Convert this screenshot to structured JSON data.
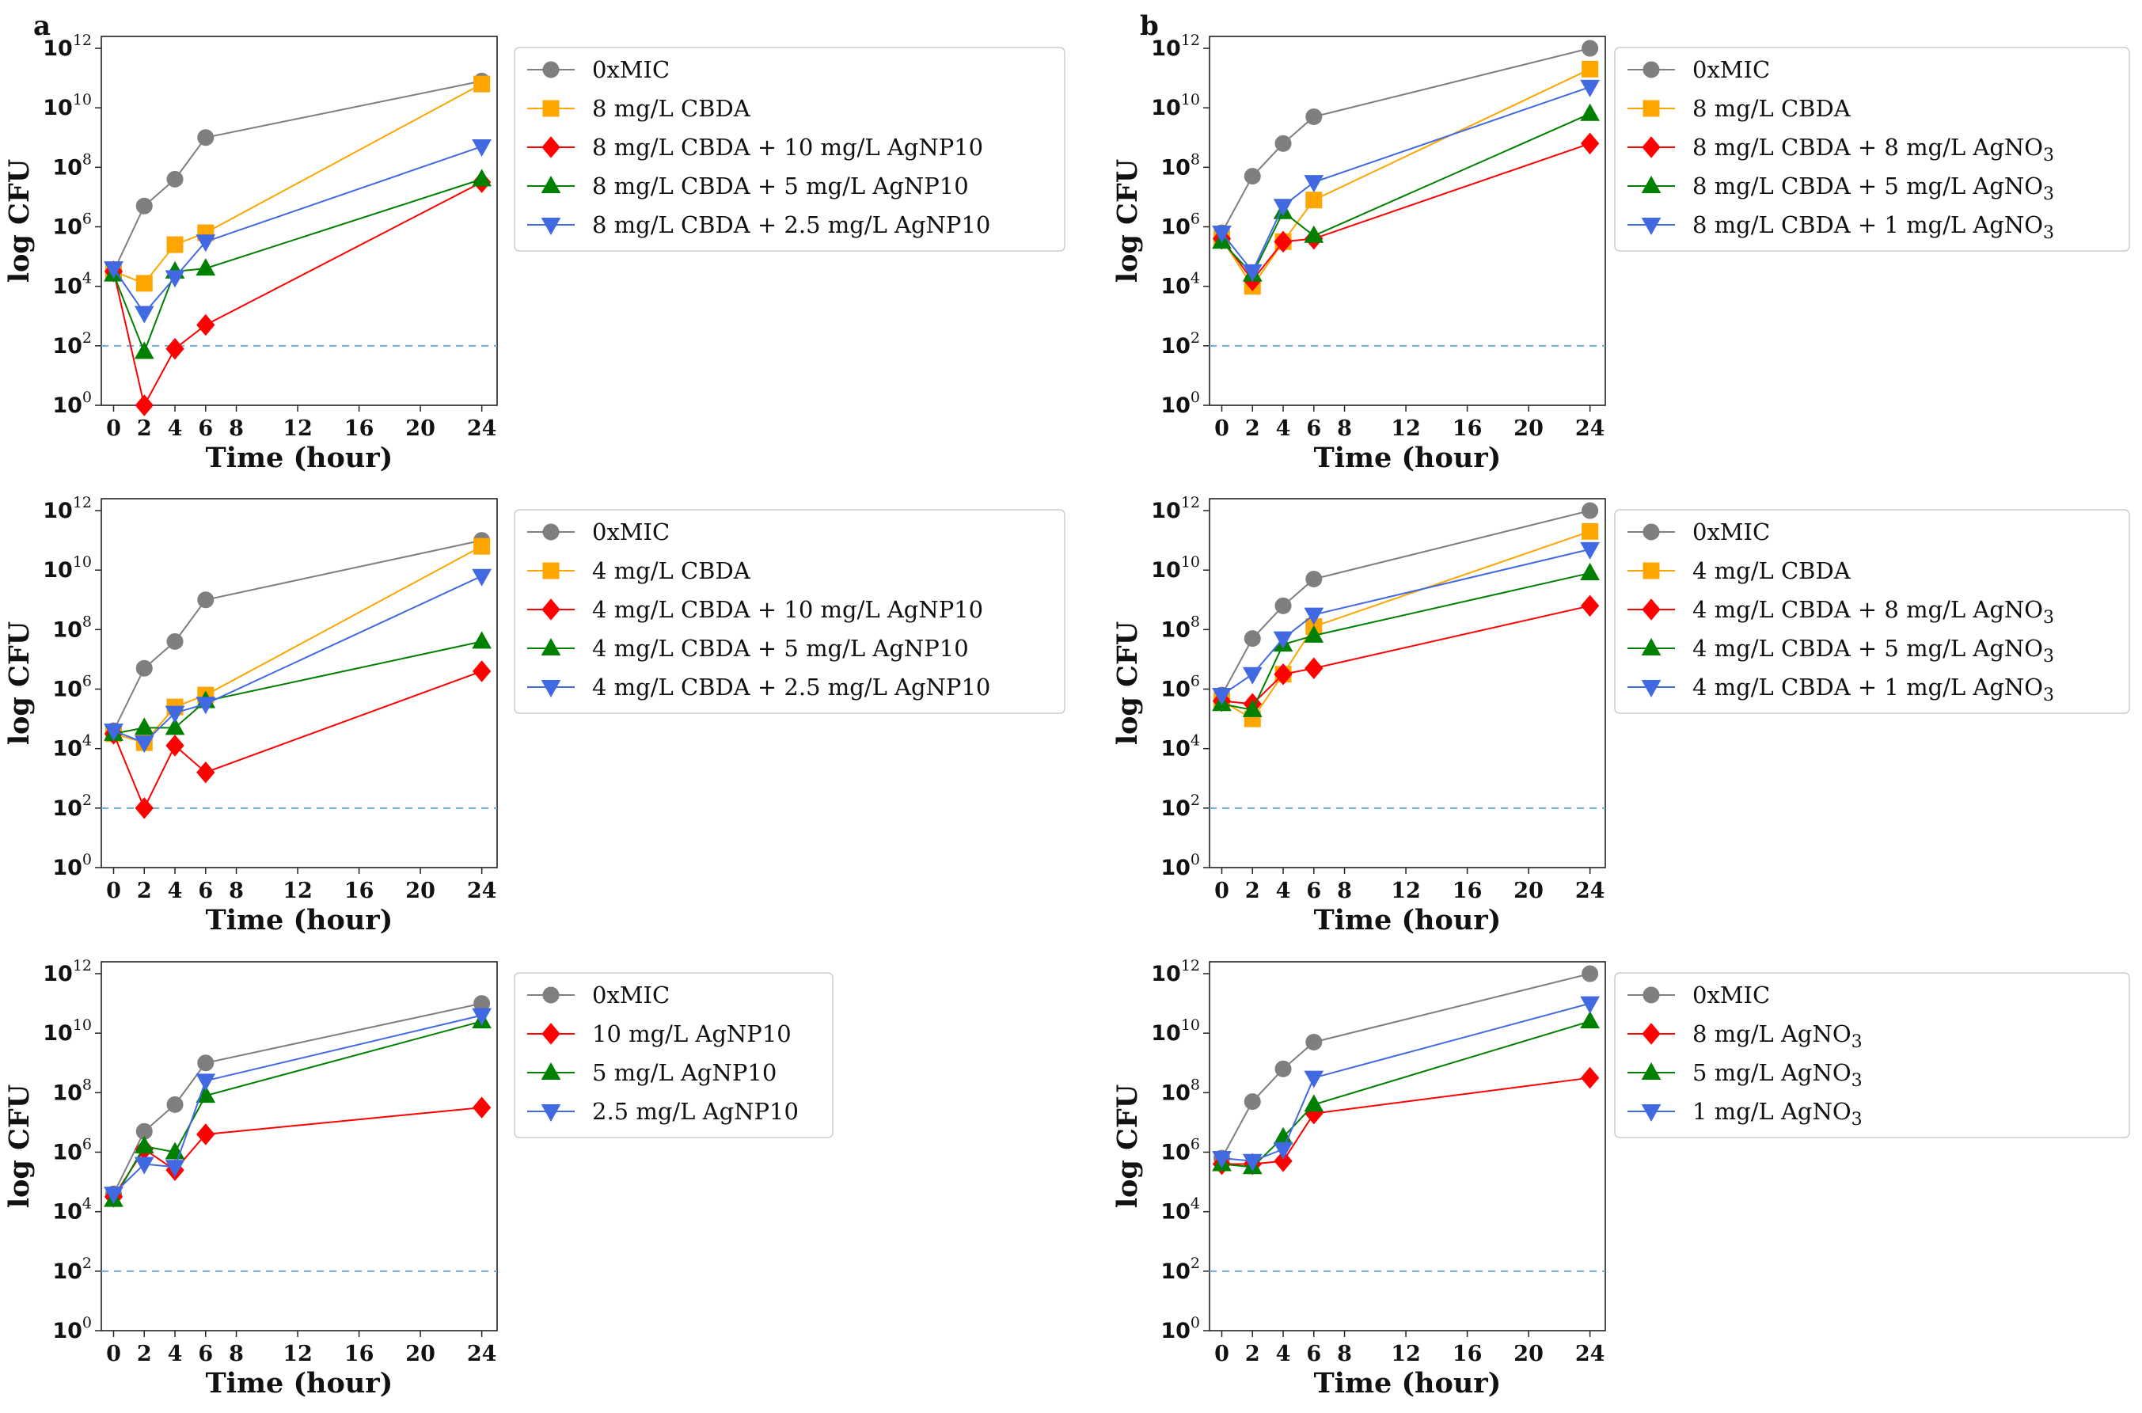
{
  "panel_labels": [
    "a",
    "b"
  ],
  "colors": {
    "0xMIC": "#7f7f7f",
    "cbda": "#ffa500",
    "high": "#ff0000",
    "mid": "#008000",
    "low": "#4169e1",
    "threshold": "#6baed6"
  },
  "chart_data": [
    {
      "id": "a1",
      "type": "line",
      "title": "",
      "xlabel": "Time (hour)",
      "ylabel": "log CFU",
      "x": [
        0,
        2,
        4,
        6,
        24
      ],
      "xticks": [
        0,
        2,
        4,
        6,
        8,
        12,
        16,
        20,
        24
      ],
      "xlim": [
        -0.8,
        25
      ],
      "yticks_exponents": [
        0,
        2,
        4,
        6,
        8,
        10,
        12
      ],
      "ylim_log10": [
        0,
        12.4
      ],
      "threshold_log10": 2,
      "series": [
        {
          "name": "0xMIC",
          "marker": "circle",
          "color": "#7f7f7f",
          "values_log10": [
            4.5,
            6.7,
            7.6,
            9.0,
            10.9
          ]
        },
        {
          "name": "8 mg/L CBDA",
          "marker": "square",
          "color": "#ffa500",
          "values_log10": [
            4.5,
            4.1,
            5.4,
            5.8,
            10.8
          ]
        },
        {
          "name": "8 mg/L CBDA + 10 mg/L AgNP10",
          "marker": "diamond",
          "color": "#ff0000",
          "values_log10": [
            4.5,
            0.0,
            1.9,
            2.7,
            7.5
          ]
        },
        {
          "name": "8 mg/L CBDA + 5 mg/L AgNP10",
          "marker": "triangle-up",
          "color": "#008000",
          "values_log10": [
            4.4,
            1.8,
            4.5,
            4.6,
            7.6
          ]
        },
        {
          "name": "8 mg/L CBDA + 2.5 mg/L AgNP10",
          "marker": "triangle-down",
          "color": "#4169e1",
          "values_log10": [
            4.6,
            3.1,
            4.3,
            5.5,
            8.7
          ]
        }
      ]
    },
    {
      "id": "b1",
      "type": "line",
      "title": "",
      "xlabel": "Time (hour)",
      "ylabel": "log CFU",
      "x": [
        0,
        2,
        4,
        6,
        24
      ],
      "xticks": [
        0,
        2,
        4,
        6,
        8,
        12,
        16,
        20,
        24
      ],
      "xlim": [
        -0.8,
        25
      ],
      "yticks_exponents": [
        0,
        2,
        4,
        6,
        8,
        10,
        12
      ],
      "ylim_log10": [
        0,
        12.4
      ],
      "threshold_log10": 2,
      "series": [
        {
          "name": "0xMIC",
          "marker": "circle",
          "color": "#7f7f7f",
          "values_log10": [
            5.8,
            7.7,
            8.8,
            9.7,
            12.0
          ]
        },
        {
          "name": "8 mg/L CBDA",
          "marker": "square",
          "color": "#ffa500",
          "values_log10": [
            5.6,
            4.0,
            5.5,
            6.9,
            11.3
          ]
        },
        {
          "name": "8 mg/L CBDA + 8 mg/L AgNO3",
          "marker": "diamond",
          "color": "#ff0000",
          "values_log10": [
            5.6,
            4.2,
            5.5,
            5.6,
            8.8
          ]
        },
        {
          "name": "8 mg/L CBDA + 5 mg/L AgNO3",
          "marker": "triangle-up",
          "color": "#008000",
          "values_log10": [
            5.5,
            4.4,
            6.5,
            5.7,
            9.8
          ]
        },
        {
          "name": "8 mg/L CBDA + 1 mg/L AgNO3",
          "marker": "triangle-down",
          "color": "#4169e1",
          "values_log10": [
            5.8,
            4.5,
            6.7,
            7.5,
            10.7
          ]
        }
      ]
    },
    {
      "id": "a2",
      "type": "line",
      "title": "",
      "xlabel": "Time (hour)",
      "ylabel": "log CFU",
      "x": [
        0,
        2,
        4,
        6,
        24
      ],
      "xticks": [
        0,
        2,
        4,
        6,
        8,
        12,
        16,
        20,
        24
      ],
      "xlim": [
        -0.8,
        25
      ],
      "yticks_exponents": [
        0,
        2,
        4,
        6,
        8,
        10,
        12
      ],
      "ylim_log10": [
        0,
        12.4
      ],
      "threshold_log10": 2,
      "series": [
        {
          "name": "0xMIC",
          "marker": "circle",
          "color": "#7f7f7f",
          "values_log10": [
            4.6,
            6.7,
            7.6,
            9.0,
            11.0
          ]
        },
        {
          "name": "4 mg/L CBDA",
          "marker": "square",
          "color": "#ffa500",
          "values_log10": [
            4.5,
            4.2,
            5.4,
            5.8,
            10.8
          ]
        },
        {
          "name": "4 mg/L CBDA + 10 mg/L AgNP10",
          "marker": "diamond",
          "color": "#ff0000",
          "values_log10": [
            4.5,
            2.0,
            4.1,
            3.2,
            6.6
          ]
        },
        {
          "name": "4 mg/L CBDA + 5 mg/L AgNP10",
          "marker": "triangle-up",
          "color": "#008000",
          "values_log10": [
            4.5,
            4.7,
            4.7,
            5.6,
            7.6
          ]
        },
        {
          "name": "4 mg/L CBDA + 2.5 mg/L AgNP10",
          "marker": "triangle-down",
          "color": "#4169e1",
          "values_log10": [
            4.6,
            4.2,
            5.2,
            5.5,
            9.8
          ]
        }
      ]
    },
    {
      "id": "b2",
      "type": "line",
      "title": "",
      "xlabel": "Time (hour)",
      "ylabel": "log CFU",
      "x": [
        0,
        2,
        4,
        6,
        24
      ],
      "xticks": [
        0,
        2,
        4,
        6,
        8,
        12,
        16,
        20,
        24
      ],
      "xlim": [
        -0.8,
        25
      ],
      "yticks_exponents": [
        0,
        2,
        4,
        6,
        8,
        10,
        12
      ],
      "ylim_log10": [
        0,
        12.4
      ],
      "threshold_log10": 2,
      "series": [
        {
          "name": "0xMIC",
          "marker": "circle",
          "color": "#7f7f7f",
          "values_log10": [
            5.8,
            7.7,
            8.8,
            9.7,
            12.0
          ]
        },
        {
          "name": "4 mg/L CBDA",
          "marker": "square",
          "color": "#ffa500",
          "values_log10": [
            5.6,
            5.0,
            6.5,
            8.1,
            11.3
          ]
        },
        {
          "name": "4 mg/L CBDA + 8 mg/L AgNO3",
          "marker": "diamond",
          "color": "#ff0000",
          "values_log10": [
            5.6,
            5.5,
            6.5,
            6.7,
            8.8
          ]
        },
        {
          "name": "4 mg/L CBDA + 5 mg/L AgNO3",
          "marker": "triangle-up",
          "color": "#008000",
          "values_log10": [
            5.5,
            5.3,
            7.5,
            7.8,
            9.9
          ]
        },
        {
          "name": "4 mg/L CBDA + 1 mg/L AgNO3",
          "marker": "triangle-down",
          "color": "#4169e1",
          "values_log10": [
            5.8,
            6.5,
            7.7,
            8.5,
            10.7
          ]
        }
      ]
    },
    {
      "id": "a3",
      "type": "line",
      "title": "",
      "xlabel": "Time (hour)",
      "ylabel": "log CFU",
      "x": [
        0,
        2,
        4,
        6,
        24
      ],
      "xticks": [
        0,
        2,
        4,
        6,
        8,
        12,
        16,
        20,
        24
      ],
      "xlim": [
        -0.8,
        25
      ],
      "yticks_exponents": [
        0,
        2,
        4,
        6,
        8,
        10,
        12
      ],
      "ylim_log10": [
        0,
        12.4
      ],
      "threshold_log10": 2,
      "series": [
        {
          "name": "0xMIC",
          "marker": "circle",
          "color": "#7f7f7f",
          "values_log10": [
            4.6,
            6.7,
            7.6,
            9.0,
            11.0
          ]
        },
        {
          "name": "10 mg/L AgNP10",
          "marker": "diamond",
          "color": "#ff0000",
          "values_log10": [
            4.5,
            6.1,
            5.4,
            6.6,
            7.5
          ]
        },
        {
          "name": "5 mg/L AgNP10",
          "marker": "triangle-up",
          "color": "#008000",
          "values_log10": [
            4.4,
            6.2,
            6.0,
            7.9,
            10.4
          ]
        },
        {
          "name": "2.5 mg/L AgNP10",
          "marker": "triangle-down",
          "color": "#4169e1",
          "values_log10": [
            4.6,
            5.6,
            5.5,
            8.4,
            10.6
          ]
        }
      ]
    },
    {
      "id": "b3",
      "type": "line",
      "title": "",
      "xlabel": "Time (hour)",
      "ylabel": "log CFU",
      "x": [
        0,
        2,
        4,
        6,
        24
      ],
      "xticks": [
        0,
        2,
        4,
        6,
        8,
        12,
        16,
        20,
        24
      ],
      "xlim": [
        -0.8,
        25
      ],
      "yticks_exponents": [
        0,
        2,
        4,
        6,
        8,
        10,
        12
      ],
      "ylim_log10": [
        0,
        12.4
      ],
      "threshold_log10": 2,
      "series": [
        {
          "name": "0xMIC",
          "marker": "circle",
          "color": "#7f7f7f",
          "values_log10": [
            5.8,
            7.7,
            8.8,
            9.7,
            12.0
          ]
        },
        {
          "name": "8 mg/L AgNO3",
          "marker": "diamond",
          "color": "#ff0000",
          "values_log10": [
            5.6,
            5.6,
            5.7,
            7.3,
            8.5
          ]
        },
        {
          "name": "5 mg/L AgNO3",
          "marker": "triangle-up",
          "color": "#008000",
          "values_log10": [
            5.6,
            5.5,
            6.5,
            7.6,
            10.4
          ]
        },
        {
          "name": "1 mg/L AgNO3",
          "marker": "triangle-down",
          "color": "#4169e1",
          "values_log10": [
            5.8,
            5.7,
            6.1,
            8.5,
            11.0
          ]
        }
      ]
    }
  ]
}
